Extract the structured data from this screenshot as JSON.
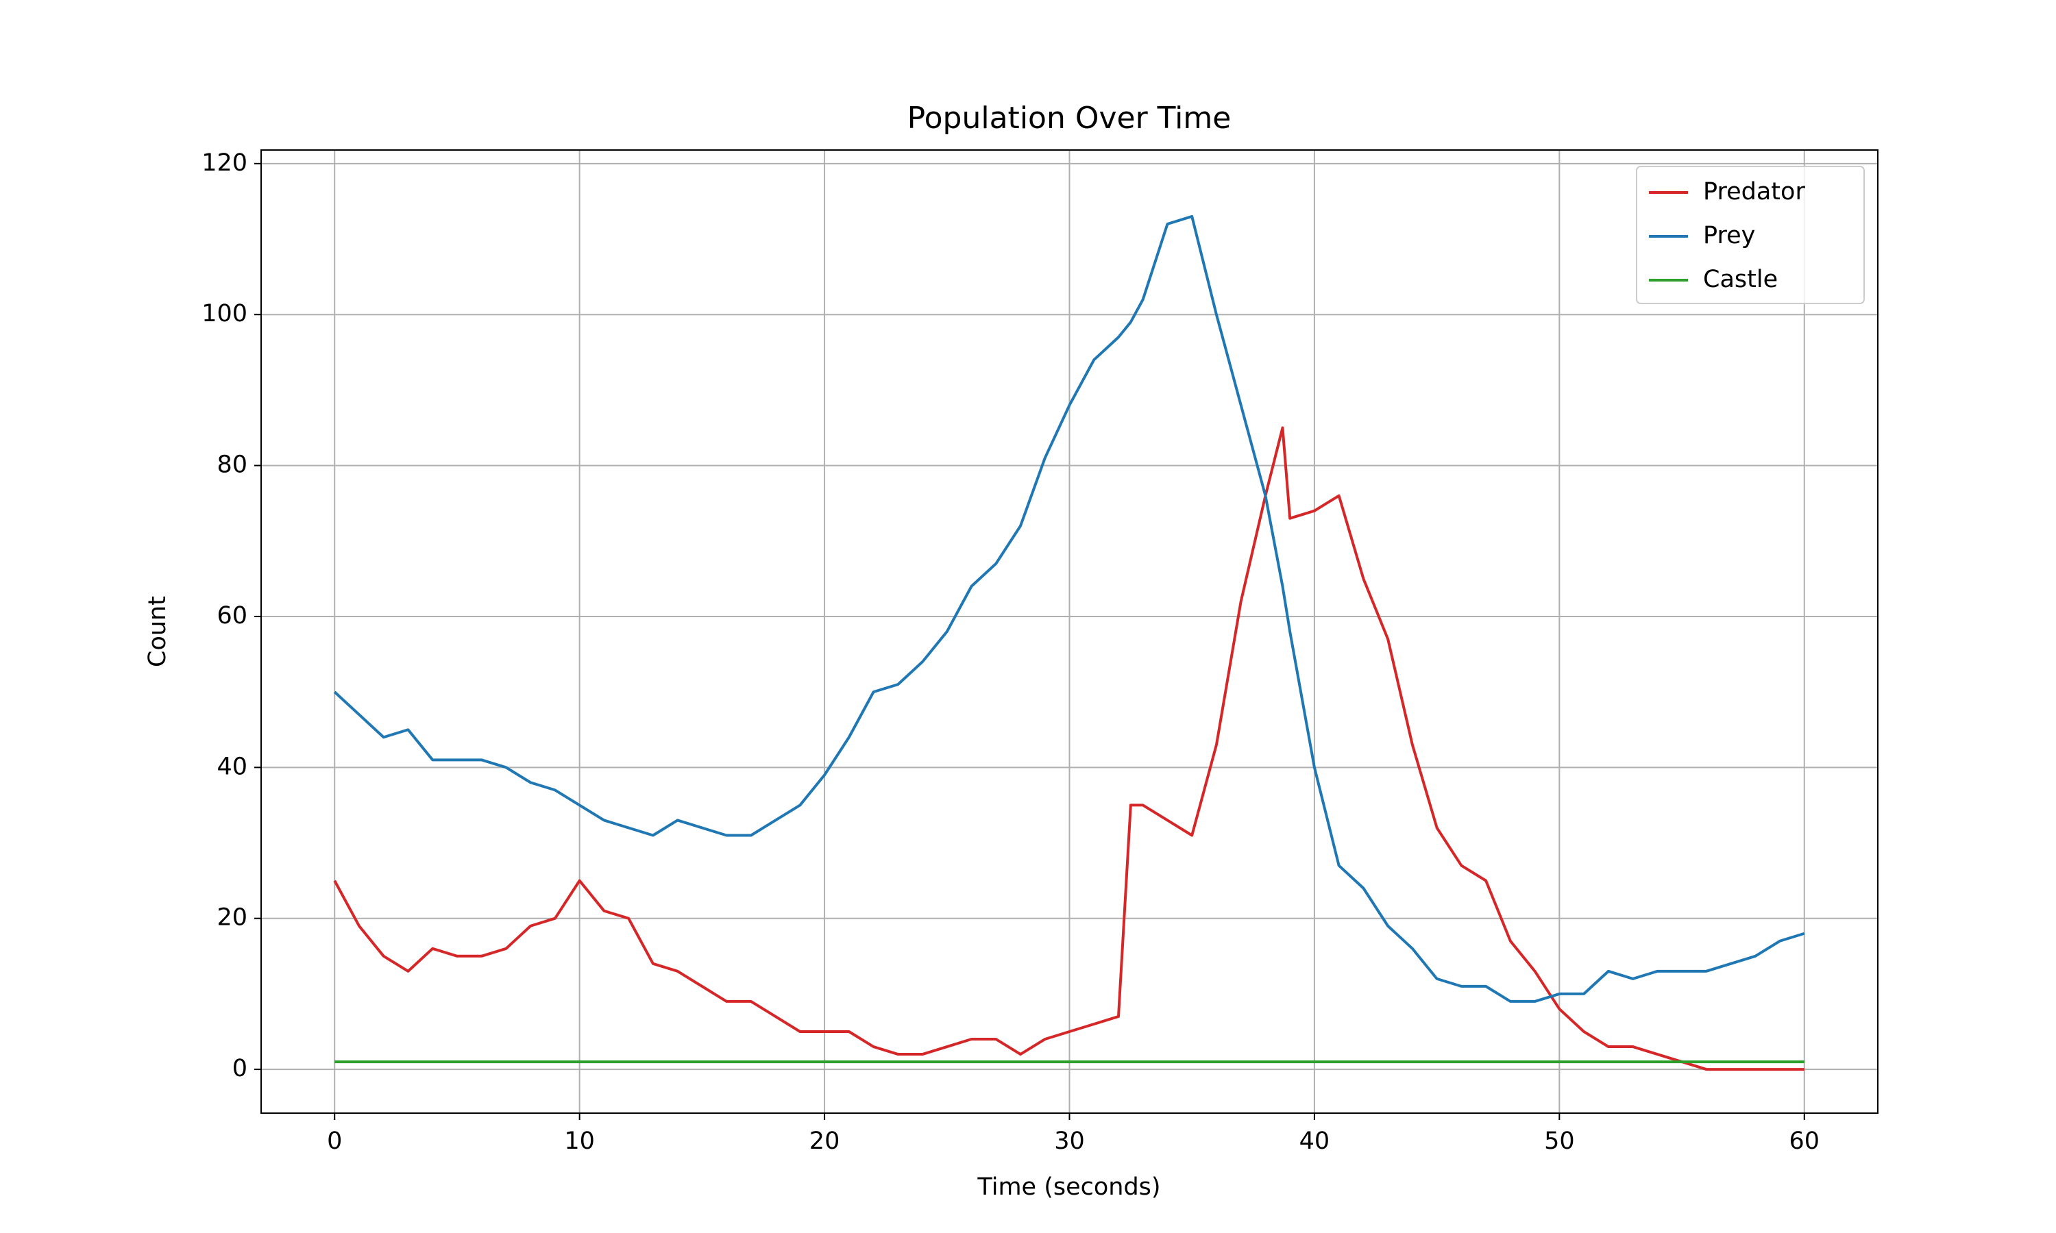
{
  "chart_data": {
    "type": "line",
    "title": "Population Over Time",
    "x_label": "Time (seconds)",
    "y_label": "Count",
    "x": [
      0,
      1,
      2,
      3,
      4,
      5,
      6,
      7,
      8,
      9,
      10,
      11,
      12,
      13,
      14,
      15,
      16,
      17,
      18,
      19,
      20,
      21,
      22,
      23,
      24,
      25,
      26,
      27,
      28,
      29,
      30,
      31,
      32,
      32.5,
      33,
      34,
      35,
      36,
      37,
      38,
      38.7,
      39,
      40,
      41,
      42,
      43,
      44,
      45,
      46,
      47,
      48,
      49,
      50,
      51,
      52,
      53,
      54,
      55,
      56,
      57,
      58,
      59,
      60
    ],
    "series": [
      {
        "name": "Predator",
        "color": "#d62728",
        "values": [
          25,
          19,
          15,
          13,
          16,
          15,
          15,
          16,
          19,
          20,
          25,
          21,
          20,
          14,
          13,
          11,
          9,
          9,
          7,
          5,
          5,
          5,
          3,
          2,
          2,
          3,
          4,
          4,
          2,
          4,
          5,
          6,
          7,
          35,
          35,
          33,
          31,
          43,
          62,
          76,
          85,
          73,
          74,
          76,
          65,
          57,
          43,
          32,
          27,
          25,
          17,
          13,
          8,
          5,
          3,
          3,
          2,
          1,
          0,
          0,
          0,
          0,
          0
        ]
      },
      {
        "name": "Prey",
        "color": "#1f77b4",
        "values": [
          50,
          47,
          44,
          45,
          41,
          41,
          41,
          40,
          38,
          37,
          35,
          33,
          32,
          31,
          33,
          32,
          31,
          31,
          33,
          35,
          39,
          44,
          50,
          51,
          54,
          58,
          64,
          67,
          72,
          81,
          88,
          94,
          97,
          99,
          102,
          112,
          113,
          100,
          88,
          76,
          64,
          58,
          40,
          27,
          24,
          19,
          16,
          12,
          11,
          11,
          9,
          9,
          10,
          10,
          13,
          12,
          13,
          13,
          13,
          14,
          15,
          17,
          18
        ]
      },
      {
        "name": "Castle",
        "color": "#2ca02c",
        "values": [
          1,
          1,
          1,
          1,
          1,
          1,
          1,
          1,
          1,
          1,
          1,
          1,
          1,
          1,
          1,
          1,
          1,
          1,
          1,
          1,
          1,
          1,
          1,
          1,
          1,
          1,
          1,
          1,
          1,
          1,
          1,
          1,
          1,
          1,
          1,
          1,
          1,
          1,
          1,
          1,
          1,
          1,
          1,
          1,
          1,
          1,
          1,
          1,
          1,
          1,
          1,
          1,
          1,
          1,
          1,
          1,
          1,
          1,
          1,
          1,
          1,
          1,
          1
        ]
      }
    ],
    "xlim": [
      -3,
      63
    ],
    "ylim": [
      -5.8,
      121.8
    ],
    "xticks": [
      0,
      10,
      20,
      30,
      40,
      50,
      60
    ],
    "yticks": [
      0,
      20,
      40,
      60,
      80,
      100,
      120
    ],
    "grid": true,
    "legend": "upper right"
  }
}
